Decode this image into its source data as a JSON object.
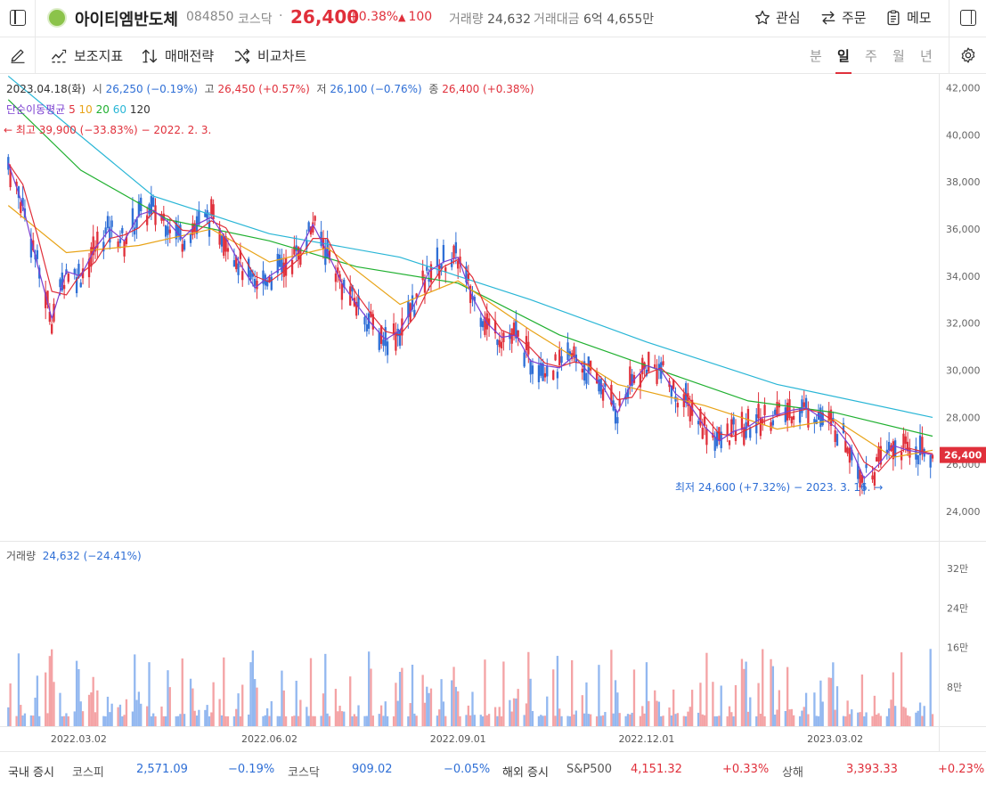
{
  "header": {
    "stock_name": "아이티엠반도체",
    "code": "084850",
    "market": "코스닥",
    "dot": "·",
    "price": "26,400",
    "change_pct": "+0.38%",
    "change_arrow": "▲",
    "change": "100",
    "volume_label": "거래량",
    "volume": "24,632",
    "amount_label": "거래대금",
    "amount": "6억 4,655만",
    "watch_label": "관심",
    "order_label": "주문",
    "memo_label": "메모"
  },
  "toolbar": {
    "indicator_label": "보조지표",
    "strategy_label": "매매전략",
    "compare_label": "비교차트",
    "periods": [
      "분",
      "일",
      "주",
      "월",
      "년"
    ],
    "active_period": "일"
  },
  "ohlc": {
    "date": "2023.04.18(화)",
    "open_label": "시",
    "open": "26,250 (−0.19%)",
    "high_label": "고",
    "high": "26,450 (+0.57%)",
    "low_label": "저",
    "low": "26,100 (−0.76%)",
    "close_label": "종",
    "close": "26,400 (+0.38%)"
  },
  "ma_legend": {
    "label": "단순이동평균",
    "periods": [
      "5",
      "10",
      "20",
      "60",
      "120"
    ],
    "colors": [
      "#7b3fd1",
      "#e0303b",
      "#e8a317",
      "#20b030",
      "#29b6d6"
    ]
  },
  "annotations": {
    "high": "← 최고 39,900 (−33.83%) − 2022. 2. 3.",
    "low": "최저 24,600 (+7.32%) − 2023. 3. 16. →"
  },
  "volume_panel": {
    "label": "거래량",
    "value": "24,632 (−24.41%)",
    "axis_labels": [
      "32만",
      "24만",
      "16만",
      "8만"
    ],
    "axis_values": [
      320000,
      240000,
      160000,
      80000
    ]
  },
  "colors": {
    "up": "#e0303b",
    "down": "#2f6fd6",
    "up_volume": "#f4a3a5",
    "down_volume": "#93b8f0"
  },
  "chart_data": {
    "type": "candlestick",
    "y_axis_labels": [
      "42,000",
      "40,000",
      "38,000",
      "36,000",
      "34,000",
      "32,000",
      "30,000",
      "28,000",
      "26,000",
      "24,000"
    ],
    "y_axis_values": [
      42000,
      40000,
      38000,
      36000,
      34000,
      32000,
      30000,
      28000,
      26000,
      24000
    ],
    "x_axis_labels": [
      "2022.03.02",
      "2022.06.02",
      "2022.09.01",
      "2022.12.01",
      "2023.03.02"
    ],
    "current_price_label": "26,400",
    "current_price": 26400,
    "price_path": [
      {
        "x": "2022-01-27",
        "y": 38800
      },
      {
        "x": "2022-02-03",
        "y": 37000
      },
      {
        "x": "2022-02-10",
        "y": 34500
      },
      {
        "x": "2022-02-17",
        "y": 32200
      },
      {
        "x": "2022-02-24",
        "y": 34200
      },
      {
        "x": "2022-03-03",
        "y": 34000
      },
      {
        "x": "2022-03-10",
        "y": 35200
      },
      {
        "x": "2022-03-17",
        "y": 36000
      },
      {
        "x": "2022-03-24",
        "y": 35500
      },
      {
        "x": "2022-03-31",
        "y": 36600
      },
      {
        "x": "2022-04-07",
        "y": 36800
      },
      {
        "x": "2022-04-14",
        "y": 36300
      },
      {
        "x": "2022-04-21",
        "y": 35600
      },
      {
        "x": "2022-04-28",
        "y": 36200
      },
      {
        "x": "2022-05-05",
        "y": 36500
      },
      {
        "x": "2022-05-12",
        "y": 35600
      },
      {
        "x": "2022-05-19",
        "y": 34500
      },
      {
        "x": "2022-05-26",
        "y": 33500
      },
      {
        "x": "2022-06-02",
        "y": 34000
      },
      {
        "x": "2022-06-09",
        "y": 34400
      },
      {
        "x": "2022-06-16",
        "y": 35000
      },
      {
        "x": "2022-06-23",
        "y": 36200
      },
      {
        "x": "2022-06-30",
        "y": 35000
      },
      {
        "x": "2022-07-07",
        "y": 33700
      },
      {
        "x": "2022-07-14",
        "y": 32800
      },
      {
        "x": "2022-07-21",
        "y": 32000
      },
      {
        "x": "2022-07-28",
        "y": 31300
      },
      {
        "x": "2022-08-04",
        "y": 31700
      },
      {
        "x": "2022-08-11",
        "y": 32800
      },
      {
        "x": "2022-08-18",
        "y": 34200
      },
      {
        "x": "2022-08-25",
        "y": 34600
      },
      {
        "x": "2022-09-01",
        "y": 34800
      },
      {
        "x": "2022-09-08",
        "y": 33100
      },
      {
        "x": "2022-09-15",
        "y": 32000
      },
      {
        "x": "2022-09-22",
        "y": 31400
      },
      {
        "x": "2022-09-29",
        "y": 31500
      },
      {
        "x": "2022-10-06",
        "y": 30400
      },
      {
        "x": "2022-10-13",
        "y": 30200
      },
      {
        "x": "2022-10-20",
        "y": 30100
      },
      {
        "x": "2022-10-27",
        "y": 30600
      },
      {
        "x": "2022-11-03",
        "y": 29900
      },
      {
        "x": "2022-11-10",
        "y": 29300
      },
      {
        "x": "2022-11-17",
        "y": 28200
      },
      {
        "x": "2022-11-24",
        "y": 29500
      },
      {
        "x": "2022-12-01",
        "y": 30200
      },
      {
        "x": "2022-12-08",
        "y": 30000
      },
      {
        "x": "2022-12-15",
        "y": 29000
      },
      {
        "x": "2022-12-22",
        "y": 28500
      },
      {
        "x": "2022-12-29",
        "y": 27600
      },
      {
        "x": "2023-01-05",
        "y": 27000
      },
      {
        "x": "2023-01-12",
        "y": 27400
      },
      {
        "x": "2023-01-19",
        "y": 27600
      },
      {
        "x": "2023-01-26",
        "y": 28000
      },
      {
        "x": "2023-02-02",
        "y": 28100
      },
      {
        "x": "2023-02-09",
        "y": 28300
      },
      {
        "x": "2023-02-16",
        "y": 28400
      },
      {
        "x": "2023-02-23",
        "y": 28000
      },
      {
        "x": "2023-03-02",
        "y": 27600
      },
      {
        "x": "2023-03-09",
        "y": 26800
      },
      {
        "x": "2023-03-16",
        "y": 25400
      },
      {
        "x": "2023-03-23",
        "y": 26000
      },
      {
        "x": "2023-03-30",
        "y": 26800
      },
      {
        "x": "2023-04-06",
        "y": 26600
      },
      {
        "x": "2023-04-13",
        "y": 26500
      },
      {
        "x": "2023-04-18",
        "y": 26400
      }
    ],
    "ma_paths": {
      "ma20": [
        {
          "x": "2022-01-27",
          "y": 37000
        },
        {
          "x": "2022-02-24",
          "y": 35000
        },
        {
          "x": "2022-03-31",
          "y": 35300
        },
        {
          "x": "2022-05-05",
          "y": 36000
        },
        {
          "x": "2022-06-02",
          "y": 34600
        },
        {
          "x": "2022-06-30",
          "y": 35200
        },
        {
          "x": "2022-08-04",
          "y": 32800
        },
        {
          "x": "2022-09-01",
          "y": 33800
        },
        {
          "x": "2022-10-06",
          "y": 31700
        },
        {
          "x": "2022-11-17",
          "y": 29400
        },
        {
          "x": "2022-12-29",
          "y": 28500
        },
        {
          "x": "2023-02-02",
          "y": 27500
        },
        {
          "x": "2023-03-02",
          "y": 27900
        },
        {
          "x": "2023-03-30",
          "y": 26300
        },
        {
          "x": "2023-04-18",
          "y": 26600
        }
      ],
      "ma60": [
        {
          "x": "2022-01-27",
          "y": 41500
        },
        {
          "x": "2022-03-03",
          "y": 38500
        },
        {
          "x": "2022-04-14",
          "y": 36400
        },
        {
          "x": "2022-06-02",
          "y": 35500
        },
        {
          "x": "2022-07-14",
          "y": 34400
        },
        {
          "x": "2022-09-01",
          "y": 33700
        },
        {
          "x": "2022-10-20",
          "y": 31500
        },
        {
          "x": "2022-12-01",
          "y": 30200
        },
        {
          "x": "2023-01-19",
          "y": 28700
        },
        {
          "x": "2023-03-02",
          "y": 28200
        },
        {
          "x": "2023-04-18",
          "y": 27200
        }
      ],
      "ma120": [
        {
          "x": "2022-01-27",
          "y": 42500
        },
        {
          "x": "2022-04-07",
          "y": 37400
        },
        {
          "x": "2022-06-02",
          "y": 35800
        },
        {
          "x": "2022-08-04",
          "y": 34800
        },
        {
          "x": "2022-10-06",
          "y": 33000
        },
        {
          "x": "2022-12-01",
          "y": 31200
        },
        {
          "x": "2023-02-02",
          "y": 29400
        },
        {
          "x": "2023-04-18",
          "y": 28000
        }
      ]
    }
  },
  "footer": {
    "domestic_label": "국내 증시",
    "kospi_label": "코스피",
    "kospi_value": "2,571.09",
    "kospi_change": "−0.19%",
    "kosdaq_label": "코스닥",
    "kosdaq_value": "909.02",
    "kosdaq_change": "−0.05%",
    "overseas_label": "해외 증시",
    "sp_label": "S&P500",
    "sp_value": "4,151.32",
    "sp_change": "+0.33%",
    "sh_label": "상해",
    "sh_value": "3,393.33",
    "sh_change": "+0.23%"
  }
}
